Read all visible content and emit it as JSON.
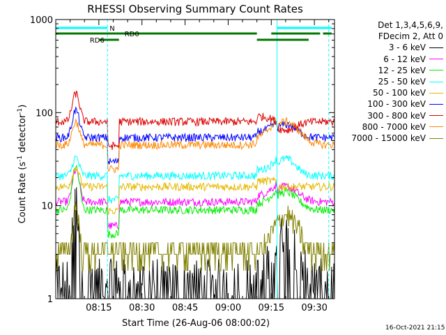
{
  "chart_data": {
    "type": "line",
    "title": "RHESSI Observing Summary Count Rates",
    "xlabel": "Start Time (26-Aug-06 08:00:02)",
    "ylabel_main": "Count Rate (s",
    "ylabel_sup1": "-1",
    "ylabel_mid": " detector",
    "ylabel_sup2": "-1",
    "ylabel_end": ")",
    "yscale": "log",
    "ylim": [
      1,
      1000
    ],
    "xlim": [
      0,
      97
    ],
    "x_unit": "minutes after 08:00:02",
    "x_tick_values": [
      15,
      30,
      45,
      60,
      75,
      90
    ],
    "x_ticks": [
      "08:15",
      "08:30",
      "08:45",
      "09:00",
      "09:15",
      "09:30"
    ],
    "y_tick_values": [
      1,
      10,
      100,
      1000
    ],
    "y_ticks": [
      "1",
      "10",
      "100",
      "1000"
    ],
    "grid": false,
    "legend_position": "right",
    "legend_header": [
      "Det 1,3,4,5,6,9,",
      "FDecim 2, Att 0"
    ],
    "series": [
      {
        "name": "3 - 6 keV",
        "color": "#000000",
        "style": "noisy-low",
        "base": 1.5,
        "peaks": [
          [
            7,
            10,
            1.2
          ],
          [
            80,
            4.5,
            5
          ]
        ]
      },
      {
        "name": "6 - 12 keV",
        "color": "#ff00ff",
        "base": 11,
        "peaks": [
          [
            7,
            24,
            1.5
          ],
          [
            80,
            16,
            5.5
          ]
        ]
      },
      {
        "name": "12 - 25 keV",
        "color": "#00ee00",
        "base": 9,
        "peaks": [
          [
            7,
            26,
            1.5
          ],
          [
            80,
            14,
            5.5
          ]
        ]
      },
      {
        "name": "25 - 50 keV",
        "color": "#00ffff",
        "base": 21,
        "peaks": [
          [
            7,
            33,
            1.5
          ],
          [
            80,
            32,
            4.5
          ]
        ]
      },
      {
        "name": "50 - 100 keV",
        "color": "#e6b800",
        "base": 16,
        "peaks": [
          [
            7,
            26,
            1.5
          ]
        ]
      },
      {
        "name": "100 - 300 keV",
        "color": "#0000ff",
        "base": 54,
        "peaks": [
          [
            7,
            106,
            1.6
          ],
          [
            80,
            75,
            5
          ]
        ]
      },
      {
        "name": "300 - 800 keV",
        "color": "#dd0000",
        "base": 80,
        "peaks": [
          [
            7,
            160,
            1.6
          ],
          [
            80,
            65,
            5
          ]
        ]
      },
      {
        "name": "800 - 7000 keV",
        "color": "#ff8800",
        "base": 45,
        "peaks": [
          [
            7,
            80,
            1.6
          ],
          [
            80,
            80,
            6
          ]
        ]
      },
      {
        "name": "7000 - 15000 keV",
        "color": "#808000",
        "style": "stepped",
        "base": 3.2,
        "peaks": [
          [
            7,
            10,
            1.2
          ],
          [
            80,
            8,
            5
          ]
        ]
      }
    ],
    "annotations": [
      {
        "label": "N",
        "color": "#00ffff"
      },
      {
        "label": "RD0",
        "color": "#007700"
      },
      {
        "label": "RD6",
        "color": "#007700"
      }
    ],
    "segment_times": {
      "N": [
        [
          0,
          18
        ],
        [
          77,
          96
        ]
      ],
      "RD0_top": [
        [
          0,
          70
        ],
        [
          75,
          92
        ],
        [
          93,
          96
        ]
      ],
      "RD6": [
        [
          15,
          22
        ],
        [
          70,
          88
        ]
      ],
      "cyan_vlines": [
        18,
        77,
        95
      ]
    }
  },
  "timestamp": "16-Oct-2021 21:15"
}
